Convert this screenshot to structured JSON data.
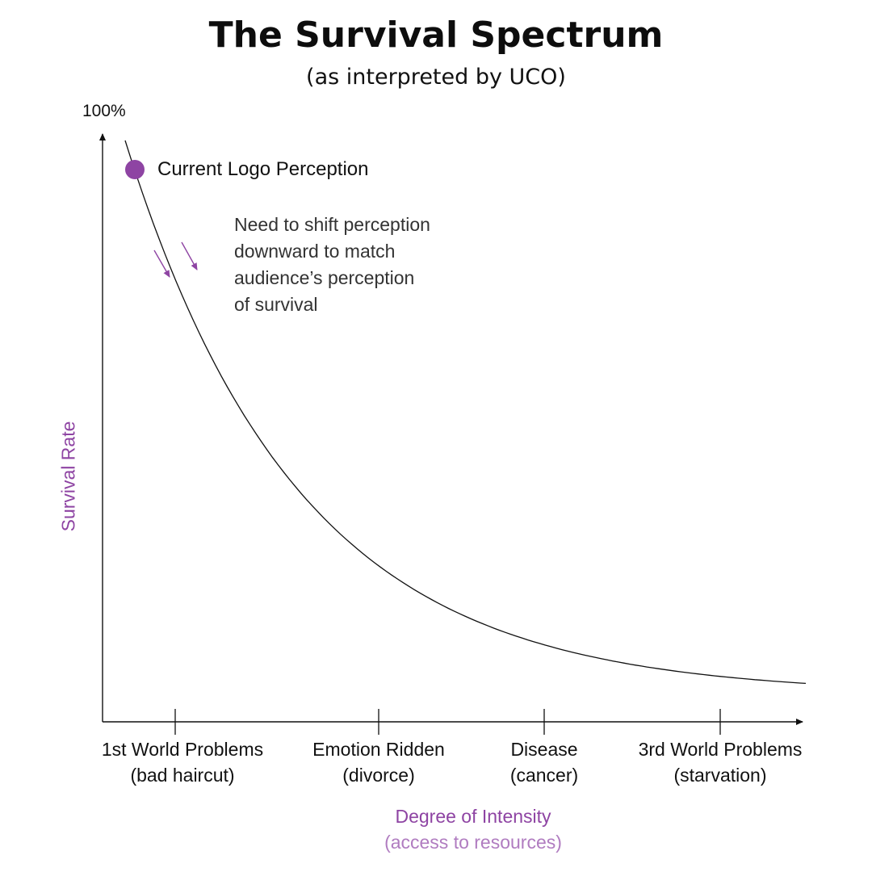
{
  "title": "The Survival Spectrum",
  "subtitle": "(as interpreted by UCO)",
  "chart_data": {
    "type": "line",
    "title": "The Survival Spectrum",
    "subtitle": "(as interpreted by UCO)",
    "ylabel": "Survival Rate",
    "y_max_label": "100%",
    "xlabel": "Degree of Intensity",
    "xlabel_sub": "(access to resources)",
    "categories": [
      {
        "line1": "1st World Problems",
        "line2": "(bad haircut)"
      },
      {
        "line1": "Emotion Ridden",
        "line2": "(divorce)"
      },
      {
        "line1": "Disease",
        "line2": "(cancer)"
      },
      {
        "line1": "3rd World Problems",
        "line2": "(starvation)"
      }
    ],
    "curve": "exponential decay from ~100% toward ~3%",
    "marked_point": {
      "label": "Current Logo Perception",
      "color": "#8e44a3"
    },
    "annotation": [
      "Need to shift perception",
      "downward to match",
      "audience’s perception",
      "of survival"
    ],
    "arrow_color": "#8e44a3",
    "grid": false
  }
}
